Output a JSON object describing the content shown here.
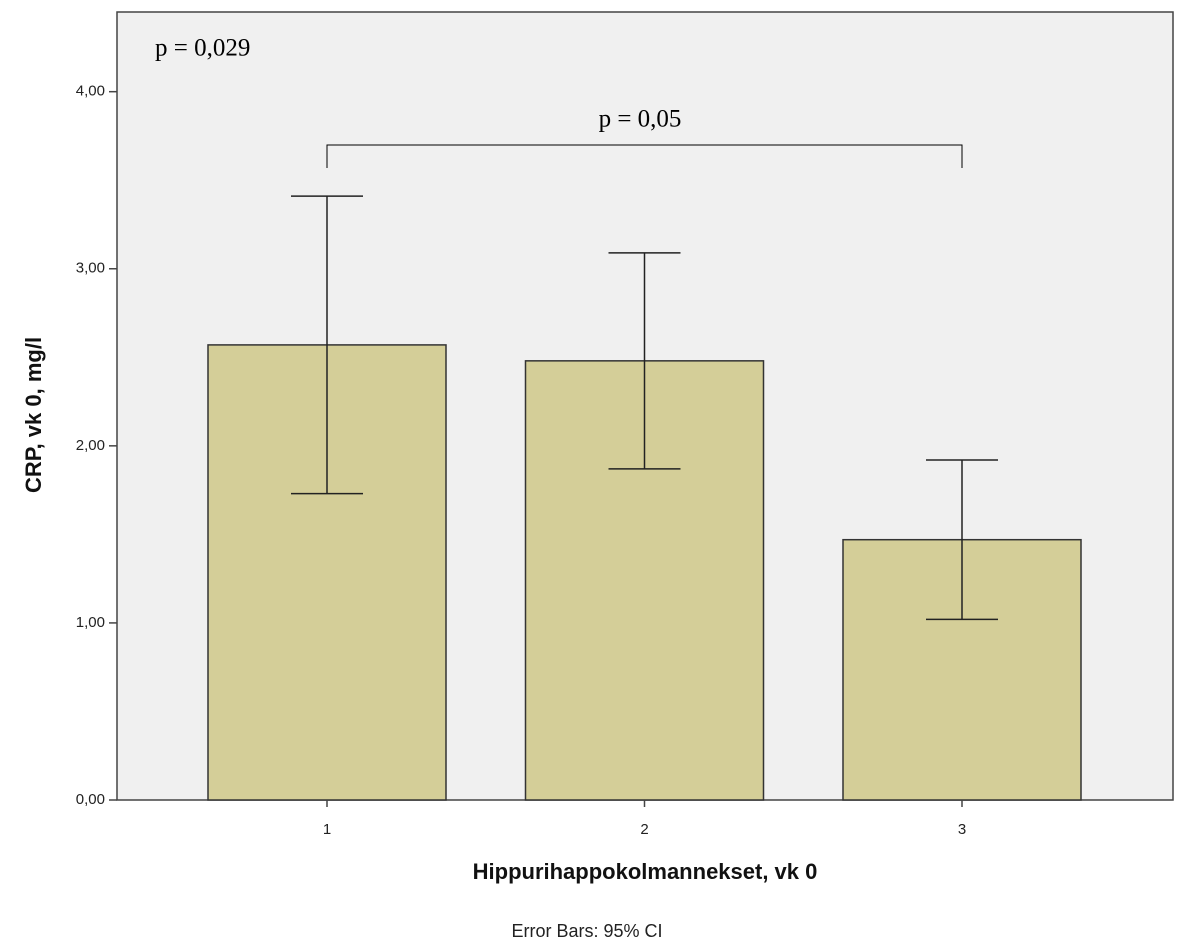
{
  "chart_data": {
    "type": "bar",
    "categories": [
      "1",
      "2",
      "3"
    ],
    "values": [
      2.57,
      2.48,
      1.47
    ],
    "error_low": [
      1.73,
      1.87,
      1.02
    ],
    "error_high": [
      3.41,
      3.09,
      1.92
    ],
    "color": "#d4ce98",
    "ylim": [
      0,
      4.45
    ],
    "yticks": [
      {
        "value": 0,
        "label": "0,00"
      },
      {
        "value": 1,
        "label": "1,00"
      },
      {
        "value": 2,
        "label": "2,00"
      },
      {
        "value": 3,
        "label": "3,00"
      },
      {
        "value": 4,
        "label": "4,00"
      }
    ],
    "x_label": "Hippurihappokolmannekset, vk 0",
    "y_label": "CRP, vk 0, mg/l",
    "footnote": "Error Bars: 95% CI",
    "annotations": [
      "p = 0,029",
      "p = 0,05"
    ]
  }
}
